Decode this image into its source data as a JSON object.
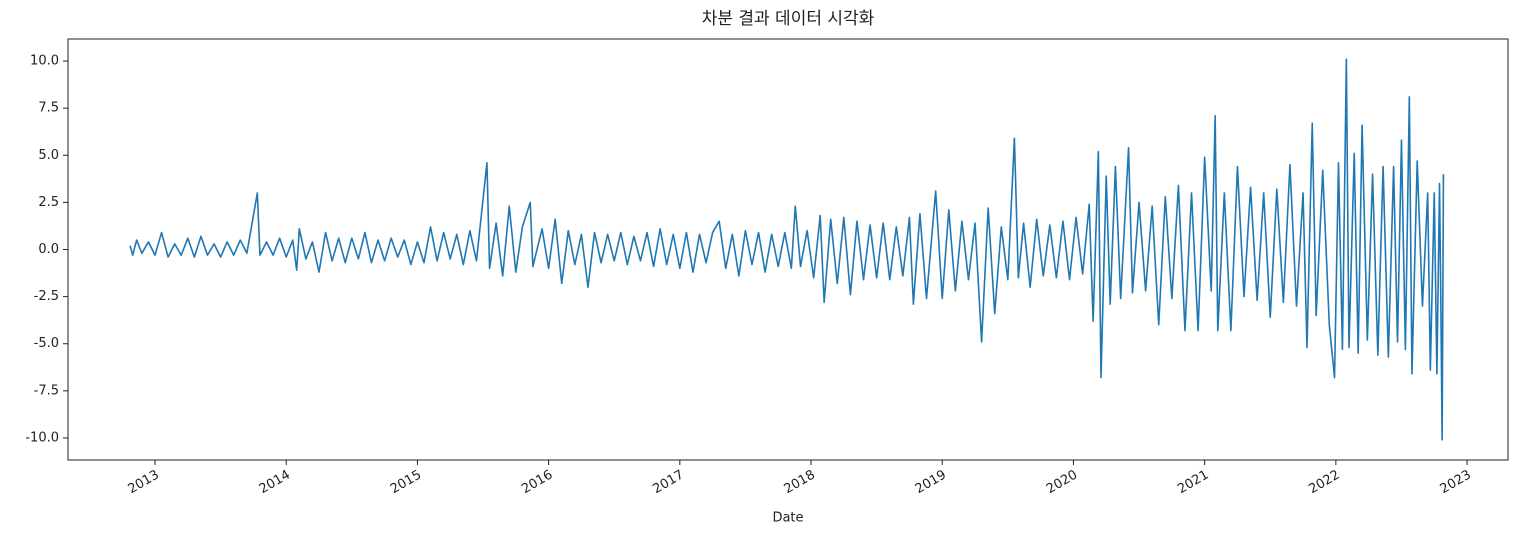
{
  "chart_data": {
    "type": "line",
    "title": "차분 결과 데이터 시각화",
    "x_label": "Date",
    "xlim": [
      2012.337,
      2023.312
    ],
    "xticks": [
      2013,
      2014,
      2015,
      2016,
      2017,
      2018,
      2019,
      2020,
      2021,
      2022,
      2023
    ],
    "ylim": [
      -11.17,
      11.17
    ],
    "yticks": [
      {
        "value": -10,
        "label": "-10.0"
      },
      -7.5,
      {
        "value": -5,
        "label": "-5.0"
      },
      -2.5,
      {
        "value": 0,
        "label": "0.0"
      },
      2.5,
      {
        "value": 5,
        "label": "5.0"
      },
      7.5,
      {
        "value": 10,
        "label": "10.0"
      }
    ],
    "color": "#1f77b4",
    "x": [
      2012.81,
      2012.83,
      2012.86,
      2012.9,
      2012.95,
      2013.0,
      2013.05,
      2013.1,
      2013.15,
      2013.2,
      2013.25,
      2013.3,
      2013.35,
      2013.4,
      2013.45,
      2013.5,
      2013.55,
      2013.6,
      2013.65,
      2013.7,
      2013.78,
      2013.8,
      2013.85,
      2013.9,
      2013.95,
      2014.0,
      2014.05,
      2014.08,
      2014.1,
      2014.15,
      2014.2,
      2014.25,
      2014.3,
      2014.35,
      2014.4,
      2014.45,
      2014.5,
      2014.55,
      2014.6,
      2014.65,
      2014.7,
      2014.75,
      2014.8,
      2014.85,
      2014.9,
      2014.95,
      2015.0,
      2015.05,
      2015.1,
      2015.15,
      2015.2,
      2015.25,
      2015.3,
      2015.35,
      2015.4,
      2015.45,
      2015.53,
      2015.55,
      2015.6,
      2015.65,
      2015.7,
      2015.75,
      2015.8,
      2015.86,
      2015.88,
      2015.95,
      2016.0,
      2016.05,
      2016.1,
      2016.15,
      2016.2,
      2016.25,
      2016.3,
      2016.35,
      2016.4,
      2016.45,
      2016.5,
      2016.55,
      2016.6,
      2016.65,
      2016.7,
      2016.75,
      2016.8,
      2016.85,
      2016.9,
      2016.95,
      2017.0,
      2017.05,
      2017.1,
      2017.15,
      2017.2,
      2017.25,
      2017.3,
      2017.35,
      2017.4,
      2017.45,
      2017.5,
      2017.55,
      2017.6,
      2017.65,
      2017.7,
      2017.75,
      2017.8,
      2017.85,
      2017.88,
      2017.92,
      2017.97,
      2018.02,
      2018.07,
      2018.1,
      2018.15,
      2018.2,
      2018.25,
      2018.3,
      2018.35,
      2018.4,
      2018.45,
      2018.5,
      2018.55,
      2018.6,
      2018.65,
      2018.7,
      2018.75,
      2018.78,
      2018.83,
      2018.88,
      2018.95,
      2019.0,
      2019.05,
      2019.1,
      2019.15,
      2019.2,
      2019.25,
      2019.3,
      2019.35,
      2019.4,
      2019.45,
      2019.5,
      2019.55,
      2019.58,
      2019.62,
      2019.67,
      2019.72,
      2019.77,
      2019.82,
      2019.87,
      2019.92,
      2019.97,
      2020.02,
      2020.07,
      2020.12,
      2020.15,
      2020.19,
      2020.21,
      2020.25,
      2020.28,
      2020.32,
      2020.36,
      2020.42,
      2020.45,
      2020.5,
      2020.55,
      2020.6,
      2020.65,
      2020.7,
      2020.75,
      2020.8,
      2020.85,
      2020.9,
      2020.95,
      2021.0,
      2021.05,
      2021.08,
      2021.1,
      2021.15,
      2021.2,
      2021.25,
      2021.3,
      2021.35,
      2021.4,
      2021.45,
      2021.5,
      2021.55,
      2021.6,
      2021.65,
      2021.7,
      2021.75,
      2021.78,
      2021.82,
      2021.85,
      2021.9,
      2021.95,
      2021.99,
      2022.02,
      2022.05,
      2022.08,
      2022.1,
      2022.14,
      2022.17,
      2022.2,
      2022.24,
      2022.28,
      2022.32,
      2022.36,
      2022.4,
      2022.44,
      2022.47,
      2022.5,
      2022.53,
      2022.56,
      2022.58,
      2022.62,
      2022.66,
      2022.7,
      2022.72,
      2022.75,
      2022.77,
      2022.79,
      2022.8,
      2022.81,
      2022.82
    ],
    "values": [
      0.2,
      -0.3,
      0.5,
      -0.2,
      0.4,
      -0.3,
      0.9,
      -0.4,
      0.3,
      -0.3,
      0.6,
      -0.4,
      0.7,
      -0.3,
      0.3,
      -0.4,
      0.4,
      -0.3,
      0.5,
      -0.2,
      3.0,
      -0.3,
      0.4,
      -0.3,
      0.6,
      -0.4,
      0.5,
      -1.1,
      1.1,
      -0.5,
      0.4,
      -1.2,
      0.9,
      -0.6,
      0.6,
      -0.7,
      0.6,
      -0.5,
      0.9,
      -0.7,
      0.5,
      -0.6,
      0.6,
      -0.4,
      0.5,
      -0.8,
      0.4,
      -0.7,
      1.2,
      -0.6,
      0.9,
      -0.5,
      0.8,
      -0.8,
      1.0,
      -0.6,
      4.6,
      -1.0,
      1.4,
      -1.4,
      2.3,
      -1.2,
      1.2,
      2.5,
      -0.9,
      1.1,
      -1.0,
      1.6,
      -1.8,
      1.0,
      -0.8,
      0.8,
      -2.0,
      0.9,
      -0.7,
      0.8,
      -0.6,
      0.9,
      -0.8,
      0.7,
      -0.6,
      0.9,
      -0.9,
      1.1,
      -0.8,
      0.8,
      -1.0,
      0.9,
      -1.2,
      0.8,
      -0.7,
      0.9,
      1.5,
      -1.0,
      0.8,
      -1.4,
      1.0,
      -0.8,
      0.9,
      -1.2,
      0.8,
      -0.9,
      0.9,
      -1.0,
      2.3,
      -0.9,
      1.0,
      -1.5,
      1.8,
      -2.8,
      1.6,
      -1.8,
      1.7,
      -2.4,
      1.5,
      -1.6,
      1.3,
      -1.5,
      1.4,
      -1.6,
      1.2,
      -1.4,
      1.7,
      -2.9,
      1.9,
      -2.6,
      3.1,
      -2.6,
      2.1,
      -2.2,
      1.5,
      -1.6,
      1.4,
      -4.9,
      2.2,
      -3.4,
      1.2,
      -1.6,
      5.9,
      -1.5,
      1.4,
      -2.0,
      1.6,
      -1.4,
      1.3,
      -1.5,
      1.5,
      -1.6,
      1.7,
      -1.3,
      2.4,
      -3.8,
      5.2,
      -6.8,
      3.9,
      -2.9,
      4.4,
      -2.6,
      5.4,
      -2.3,
      2.5,
      -2.2,
      2.3,
      -4.0,
      2.8,
      -2.6,
      3.4,
      -4.3,
      3.0,
      -4.3,
      4.9,
      -2.2,
      7.1,
      -4.3,
      3.0,
      -4.3,
      4.4,
      -2.5,
      3.3,
      -2.7,
      3.0,
      -3.6,
      3.2,
      -2.8,
      4.5,
      -3.0,
      3.0,
      -5.2,
      6.7,
      -3.5,
      4.2,
      -4.0,
      -6.8,
      4.6,
      -5.3,
      10.1,
      -5.2,
      5.1,
      -5.5,
      6.6,
      -4.8,
      4.0,
      -5.6,
      4.4,
      -5.7,
      4.4,
      -4.9,
      5.8,
      -5.3,
      8.1,
      -6.6,
      4.7,
      -3.0,
      3.0,
      -6.4,
      3.0,
      -6.6,
      3.5,
      -2.7,
      -10.1,
      4.0
    ]
  }
}
